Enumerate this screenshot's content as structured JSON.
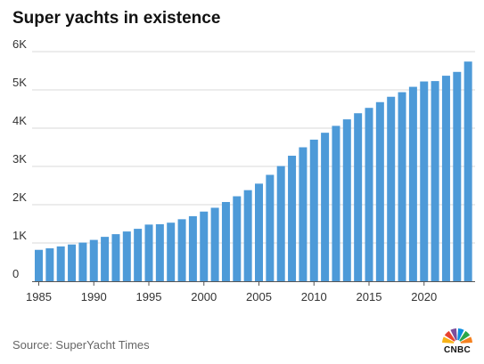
{
  "chart_data": {
    "type": "bar",
    "title": "Super yachts in existence",
    "xlabel": "",
    "ylabel": "",
    "categories": [
      1985,
      1986,
      1987,
      1988,
      1989,
      1990,
      1991,
      1992,
      1993,
      1994,
      1995,
      1996,
      1997,
      1998,
      1999,
      2000,
      2001,
      2002,
      2003,
      2004,
      2005,
      2006,
      2007,
      2008,
      2009,
      2010,
      2011,
      2012,
      2013,
      2014,
      2015,
      2016,
      2017,
      2018,
      2019,
      2020,
      2021,
      2022,
      2023,
      2024
    ],
    "values": [
      820,
      860,
      910,
      960,
      1010,
      1080,
      1160,
      1230,
      1300,
      1370,
      1480,
      1490,
      1530,
      1620,
      1700,
      1820,
      1920,
      2070,
      2220,
      2380,
      2550,
      2780,
      3010,
      3280,
      3500,
      3700,
      3880,
      4060,
      4230,
      4390,
      4530,
      4680,
      4820,
      4940,
      5080,
      5220,
      5230,
      5370,
      5470,
      5740
    ],
    "ylim": [
      0,
      6000
    ],
    "yticks": [
      0,
      1000,
      2000,
      3000,
      4000,
      5000,
      6000
    ],
    "ytick_labels": [
      "0",
      "1K",
      "2K",
      "3K",
      "4K",
      "5K",
      "6K"
    ],
    "xtick_labels": [
      "1985",
      "1990",
      "1995",
      "2000",
      "2005",
      "2010",
      "2015",
      "2020"
    ],
    "grid": true,
    "bar_color": "#4d9ad8"
  },
  "source": "Source: SuperYacht Times",
  "logo": {
    "text": "CNBC",
    "icon": "peacock-icon",
    "colors": [
      "#f7b217",
      "#e8432f",
      "#7c4e9c",
      "#0b8de0",
      "#2aa74a",
      "#f58220"
    ]
  }
}
